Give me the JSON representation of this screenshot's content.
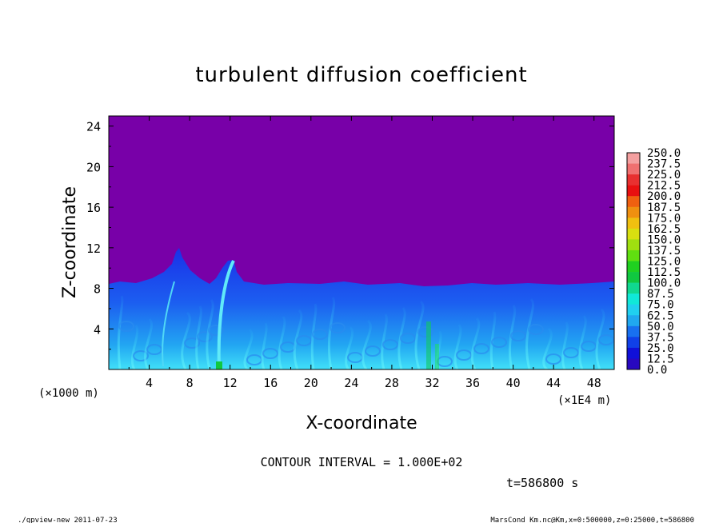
{
  "chart_data": {
    "type": "heatmap",
    "title": "turbulent diffusion coefficient",
    "xlabel": "X-coordinate",
    "ylabel": "Z-coordinate",
    "x_unit_left": "(×1000 m)",
    "x_unit_right": "(×1E4 m)",
    "xlim": [
      0,
      50
    ],
    "ylim": [
      0,
      25
    ],
    "xticks": [
      4,
      8,
      12,
      16,
      20,
      24,
      28,
      32,
      36,
      40,
      44,
      48
    ],
    "yticks": [
      4,
      8,
      12,
      16,
      20,
      24
    ],
    "colorbar": {
      "levels": [
        "250.0",
        "237.5",
        "225.0",
        "212.5",
        "200.0",
        "187.5",
        "175.0",
        "162.5",
        "150.0",
        "137.5",
        "125.0",
        "112.5",
        "100.0",
        "87.5",
        "75.0",
        "62.5",
        "50.0",
        "37.5",
        "25.0",
        "12.5",
        "0.0"
      ],
      "colors": [
        "#f4a0a0",
        "#f07070",
        "#e83030",
        "#e81010",
        "#f06010",
        "#f09010",
        "#f0c010",
        "#d8e010",
        "#a0e010",
        "#60e010",
        "#20d020",
        "#10c840",
        "#10d890",
        "#10e8d8",
        "#20d0f0",
        "#20a8f0",
        "#1870f0",
        "#1040e8",
        "#1010d8",
        "#2808c0",
        "#7800a8"
      ]
    },
    "contour_interval": "CONTOUR INTERVAL = 1.000E+02",
    "time_label": "t=586800 s",
    "footer_left": "./gpview-new  2011-07-23",
    "footer_right": "MarsCond_Km.nc@Km,x=0:500000,z=0:25000,t=586800"
  }
}
